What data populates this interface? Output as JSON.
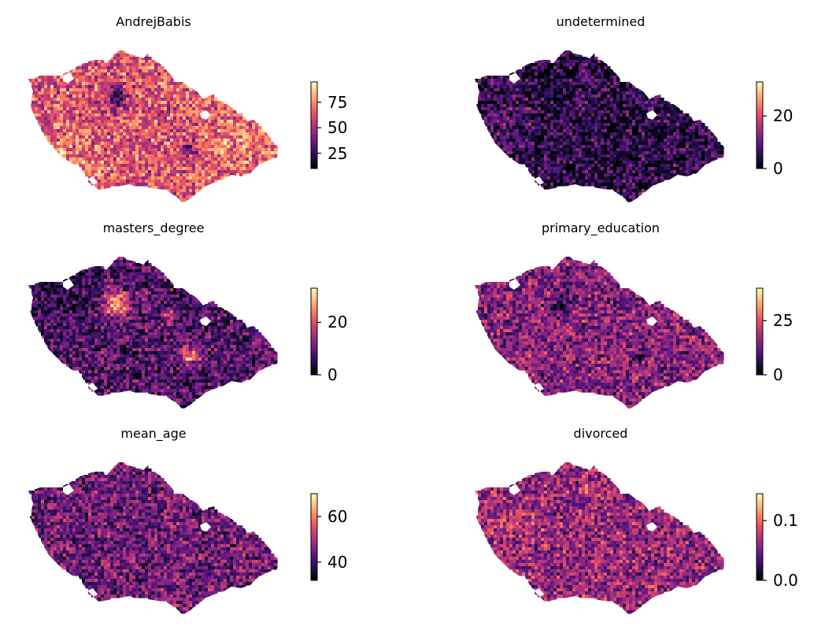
{
  "figure": {
    "colormap": "magma",
    "colormap_stops": [
      "#000004",
      "#1c1044",
      "#4f127b",
      "#812581",
      "#b5367a",
      "#e55064",
      "#fb8761",
      "#fec287",
      "#fcfdbf"
    ],
    "panels": [
      {
        "title": "AndrejBabis",
        "ticks": [
          {
            "label": "75",
            "value": 75
          },
          {
            "label": "50",
            "value": 50
          },
          {
            "label": "25",
            "value": 25
          }
        ],
        "range": [
          10,
          95
        ],
        "mean_level": 0.62
      },
      {
        "title": "undetermined",
        "ticks": [
          {
            "label": "20",
            "value": 20
          },
          {
            "label": "0",
            "value": 0
          }
        ],
        "range": [
          0,
          33
        ],
        "mean_level": 0.15
      },
      {
        "title": "masters_degree",
        "ticks": [
          {
            "label": "20",
            "value": 20
          },
          {
            "label": "0",
            "value": 0
          }
        ],
        "range": [
          0,
          33
        ],
        "mean_level": 0.25
      },
      {
        "title": "primary_education",
        "ticks": [
          {
            "label": "25",
            "value": 25
          },
          {
            "label": "0",
            "value": 0
          }
        ],
        "range": [
          0,
          40
        ],
        "mean_level": 0.38
      },
      {
        "title": "mean_age",
        "ticks": [
          {
            "label": "60",
            "value": 60
          },
          {
            "label": "40",
            "value": 40
          }
        ],
        "range": [
          32,
          70
        ],
        "mean_level": 0.33
      },
      {
        "title": "divorced",
        "ticks": [
          {
            "label": "0.1",
            "value": 0.1
          },
          {
            "label": "0.0",
            "value": 0.0
          }
        ],
        "range": [
          0.0,
          0.145
        ],
        "mean_level": 0.42
      }
    ]
  }
}
